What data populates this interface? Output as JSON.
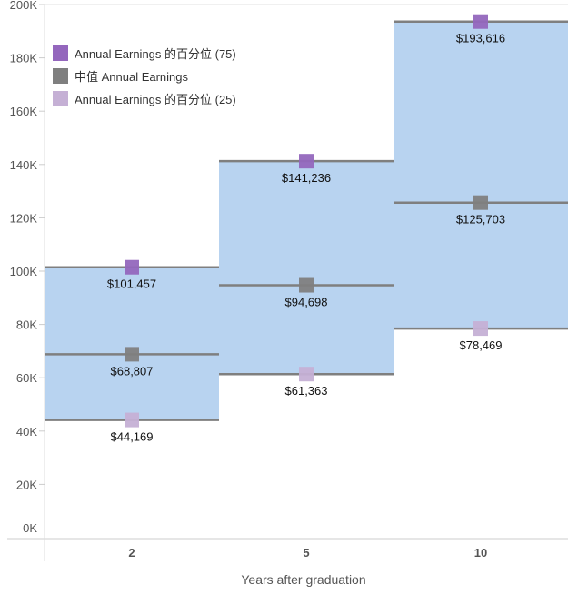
{
  "chart_data": {
    "type": "bar",
    "subtype": "floating-range-with-markers",
    "categories": [
      "2",
      "5",
      "10"
    ],
    "xlabel": "Years after graduation",
    "ylabel": "",
    "ylim": [
      0,
      200000
    ],
    "yticks": [
      0,
      20000,
      40000,
      60000,
      80000,
      100000,
      120000,
      140000,
      160000,
      180000,
      200000
    ],
    "ytick_labels": [
      "0K",
      "20K",
      "40K",
      "60K",
      "80K",
      "100K",
      "120K",
      "140K",
      "160K",
      "180K",
      "200K"
    ],
    "grid": false,
    "legend_position": "top-left",
    "series": [
      {
        "name": "Annual Earnings 的百分位 (75)",
        "values": [
          101457,
          141236,
          193616
        ],
        "labels": [
          "$101,457",
          "$141,236",
          "$193,616"
        ],
        "color": "#9467bd"
      },
      {
        "name": "中值 Annual Earnings",
        "values": [
          68807,
          94698,
          125703
        ],
        "labels": [
          "$68,807",
          "$94,698",
          "$125,703"
        ],
        "color": "#7f7f7f"
      },
      {
        "name": "Annual Earnings 的百分位 (25)",
        "values": [
          44169,
          61363,
          78469
        ],
        "labels": [
          "$44,169",
          "$61,363",
          "$78,469"
        ],
        "color": "#c5b0d5"
      }
    ],
    "band_color": "#b8d3f0",
    "line_color": "#7f7f7f"
  }
}
